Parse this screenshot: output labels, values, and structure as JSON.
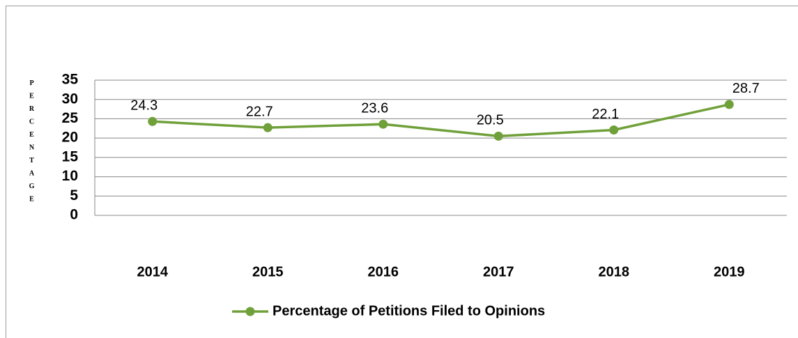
{
  "chart_data": {
    "type": "line",
    "y_label": "PERCENTAGE",
    "categories": [
      "2014",
      "2015",
      "2016",
      "2017",
      "2018",
      "2019"
    ],
    "series": [
      {
        "name": "Percentage of Petitions Filed to Opinions",
        "color": "#70a03a",
        "values": [
          24.3,
          22.7,
          23.6,
          20.5,
          22.1,
          28.7
        ]
      }
    ],
    "ylim": [
      0,
      35
    ],
    "yticks": [
      0,
      5,
      10,
      15,
      20,
      25,
      30,
      35
    ],
    "grid": true,
    "legend": "bottom"
  }
}
